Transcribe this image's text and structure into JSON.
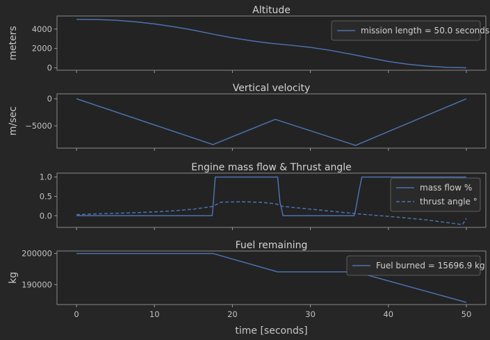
{
  "colors": {
    "background": "#262626",
    "line": "#4c72b0"
  },
  "xlabel": "time [seconds]",
  "chart_data": [
    {
      "type": "line",
      "title": "Altitude",
      "ylabel": "meters",
      "xlim": [
        -2.5,
        52.5
      ],
      "ylim": [
        -250,
        5350
      ],
      "xticks": [
        0,
        10,
        20,
        30,
        40,
        50
      ],
      "yticks": [
        0,
        2000,
        4000
      ],
      "ytick_labels": [
        "0",
        "2000",
        "4000"
      ],
      "legend": {
        "position": "upper-right",
        "entries": [
          "mission length = 50.0 seconds"
        ]
      },
      "series": [
        {
          "name": "mission length = 50.0 seconds",
          "style": "solid",
          "x": [
            0,
            2.5,
            5,
            7.5,
            10,
            12.5,
            15,
            17.5,
            20,
            22.5,
            25,
            27.5,
            30,
            32.5,
            35,
            37.5,
            40,
            42.5,
            45,
            47.5,
            50
          ],
          "y": [
            5000,
            4990,
            4910,
            4760,
            4530,
            4240,
            3890,
            3480,
            3100,
            2780,
            2520,
            2330,
            2110,
            1810,
            1440,
            1040,
            660,
            370,
            170,
            50,
            0
          ]
        }
      ]
    },
    {
      "type": "line",
      "title": "Vertical velocity",
      "ylabel": "m/sec",
      "xlim": [
        -2.5,
        52.5
      ],
      "ylim": [
        -9100,
        900
      ],
      "xticks": [
        0,
        10,
        20,
        30,
        40,
        50
      ],
      "yticks": [
        -5000,
        0
      ],
      "ytick_labels": [
        "−5000",
        "0"
      ],
      "series": [
        {
          "name": "",
          "style": "solid",
          "x": [
            0,
            17.5,
            25.5,
            35.8,
            50
          ],
          "y": [
            0,
            -8450,
            -3800,
            -8600,
            0
          ]
        }
      ]
    },
    {
      "type": "line",
      "title": "Engine mass flow & Thrust angle",
      "ylabel": "",
      "xlim": [
        -2.5,
        52.5
      ],
      "ylim": [
        -0.3,
        1.1
      ],
      "xticks": [
        0,
        10,
        20,
        30,
        40,
        50
      ],
      "yticks": [
        0.0,
        0.5,
        1.0
      ],
      "ytick_labels": [
        "0.0",
        "0.5",
        "1.0"
      ],
      "legend": {
        "position": "upper-right",
        "entries": [
          "mass flow %",
          "thrust angle °"
        ]
      },
      "series": [
        {
          "name": "mass flow %",
          "style": "solid",
          "x": [
            0,
            17.4,
            17.5,
            17.8,
            25.8,
            26.1,
            26.5,
            35.6,
            35.8,
            36.2,
            36.6,
            50
          ],
          "y": [
            0,
            0,
            0.2,
            1.0,
            1.0,
            0.35,
            0,
            0,
            0.15,
            0.6,
            1.0,
            1.0
          ]
        },
        {
          "name": "thrust angle °",
          "style": "dashed",
          "x": [
            0,
            3,
            6,
            9,
            12,
            15,
            17.5,
            18.5,
            21,
            23.5,
            25.5,
            26.5,
            30,
            33,
            36,
            39,
            42,
            45,
            48,
            49.5,
            50
          ],
          "y": [
            0.03,
            0.05,
            0.07,
            0.09,
            0.12,
            0.17,
            0.24,
            0.35,
            0.36,
            0.35,
            0.31,
            0.24,
            0.17,
            0.11,
            0.05,
            0.0,
            -0.05,
            -0.11,
            -0.19,
            -0.23,
            -0.07
          ]
        }
      ]
    },
    {
      "type": "line",
      "title": "Fuel remaining",
      "ylabel": "kg",
      "xlim": [
        -2.5,
        52.5
      ],
      "ylim": [
        183600,
        200800
      ],
      "xticks": [
        0,
        10,
        20,
        30,
        40,
        50
      ],
      "xtick_labels": [
        "0",
        "10",
        "20",
        "30",
        "40",
        "50"
      ],
      "yticks": [
        190000,
        200000
      ],
      "ytick_labels": [
        "190000",
        "200000"
      ],
      "legend": {
        "position": "upper-right",
        "entries": [
          "Fuel burned = 15696.9 kg"
        ]
      },
      "series": [
        {
          "name": "Fuel burned = 15696.9 kg",
          "style": "solid",
          "x": [
            0,
            17.5,
            25.8,
            35.8,
            50
          ],
          "y": [
            200000,
            200000,
            194100,
            194100,
            184303
          ]
        }
      ]
    }
  ]
}
